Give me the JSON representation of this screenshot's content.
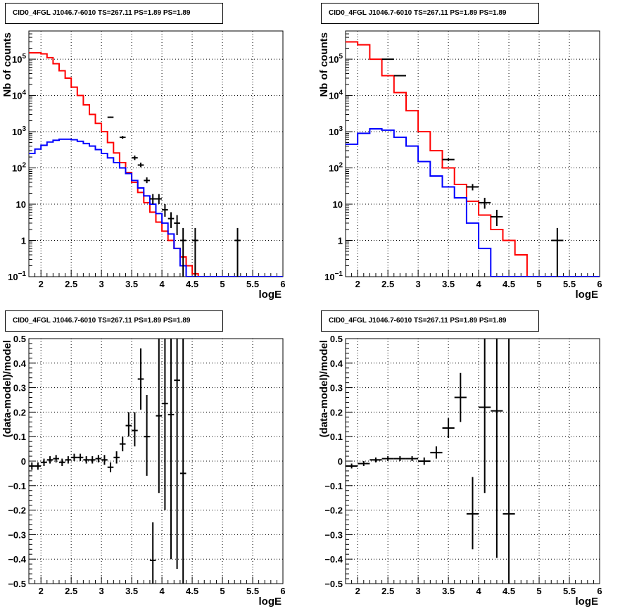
{
  "chart_data": [
    {
      "type": "line",
      "title": "CID0_4FGL J1046.7-6010 TS=267.11 PS=1.89 PS=1.89",
      "xlabel": "logE",
      "ylabel": "Nb of counts",
      "log_y": true,
      "xlim": [
        1.8,
        6.0
      ],
      "ylim": [
        0.1,
        600000
      ],
      "xticks": [
        "2",
        "2.5",
        "3",
        "3.5",
        "4",
        "4.5",
        "5",
        "5.5",
        "6"
      ],
      "yticks": [
        "10^-1",
        "1",
        "10",
        "10^2",
        "10^3",
        "10^4",
        "10^5"
      ],
      "grid": true,
      "bin_edges": [
        1.8,
        1.9,
        2.0,
        2.1,
        2.2,
        2.3,
        2.4,
        2.5,
        2.6,
        2.7,
        2.8,
        2.9,
        3.0,
        3.1,
        3.2,
        3.3,
        3.4,
        3.5,
        3.6,
        3.7,
        3.8,
        3.9,
        4.0,
        4.1,
        4.2,
        4.3,
        4.4,
        4.5,
        4.6,
        4.7,
        4.8,
        4.9,
        5.0,
        5.1,
        5.2,
        5.3,
        5.4,
        5.5,
        5.6,
        5.7,
        5.8,
        5.9,
        6.0
      ],
      "series": [
        {
          "color": "#ff0000",
          "step": true,
          "values": [
            150000,
            150000,
            140000,
            110000,
            75000,
            48000,
            30000,
            17000,
            10000,
            5500,
            3000,
            1700,
            1000,
            500,
            260,
            140,
            75,
            40,
            21,
            11,
            6,
            3.2,
            1.8,
            1.0,
            0.6,
            0.35,
            0.2,
            0.12,
            0.1,
            0.1,
            0.1,
            0.1,
            0.1,
            0.1,
            0.1,
            0.1,
            0.1,
            0.1,
            0.1,
            0.1,
            0.1,
            0.1
          ]
        },
        {
          "color": "#0000ff",
          "step": true,
          "values": [
            250,
            330,
            420,
            520,
            580,
            620,
            620,
            600,
            540,
            470,
            400,
            320,
            250,
            190,
            140,
            100,
            70,
            45,
            28,
            17,
            10,
            5.5,
            3.0,
            1.5,
            0.6,
            0.2,
            0.1,
            0.1,
            0.1,
            0.1,
            0.1,
            0.1,
            0.1,
            0.1,
            0.1,
            0.1,
            0.1,
            0.1,
            0.1,
            0.1,
            0.1,
            0.1
          ]
        }
      ],
      "points": [
        {
          "x": 3.15,
          "y": 2500,
          "dx": 0.05,
          "ylo": 2400,
          "yhi": 2600
        },
        {
          "x": 3.35,
          "y": 700,
          "dx": 0.05,
          "ylo": 640,
          "yhi": 760
        },
        {
          "x": 3.55,
          "y": 190,
          "dx": 0.05,
          "ylo": 165,
          "yhi": 220
        },
        {
          "x": 3.65,
          "y": 120,
          "dx": 0.05,
          "ylo": 105,
          "yhi": 140
        },
        {
          "x": 3.75,
          "y": 45,
          "dx": 0.05,
          "ylo": 38,
          "yhi": 55
        },
        {
          "x": 3.85,
          "y": 14,
          "dx": 0.05,
          "ylo": 10,
          "yhi": 19
        },
        {
          "x": 3.95,
          "y": 14,
          "dx": 0.05,
          "ylo": 10,
          "yhi": 19
        },
        {
          "x": 4.05,
          "y": 7,
          "dx": 0.05,
          "ylo": 4.5,
          "yhi": 10
        },
        {
          "x": 4.15,
          "y": 4,
          "dx": 0.05,
          "ylo": 2.2,
          "yhi": 6
        },
        {
          "x": 4.25,
          "y": 3,
          "dx": 0.05,
          "ylo": 1.4,
          "yhi": 5
        },
        {
          "x": 4.35,
          "y": 1,
          "dx": 0.05,
          "ylo": 0.1,
          "yhi": 2.2
        },
        {
          "x": 4.55,
          "y": 1,
          "dx": 0.05,
          "ylo": 0.1,
          "yhi": 2.2
        },
        {
          "x": 5.25,
          "y": 1,
          "dx": 0.05,
          "ylo": 0.1,
          "yhi": 2.2
        }
      ]
    },
    {
      "type": "line",
      "title": "CID0_4FGL J1046.7-6010 TS=267.11 PS=1.89 PS=1.89",
      "xlabel": "logE",
      "ylabel": "Nb of counts",
      "log_y": true,
      "xlim": [
        1.8,
        6.0
      ],
      "ylim": [
        0.1,
        600000
      ],
      "xticks": [
        "2",
        "2.5",
        "3",
        "3.5",
        "4",
        "4.5",
        "5",
        "5.5",
        "6"
      ],
      "yticks": [
        "10^-1",
        "1",
        "10",
        "10^2",
        "10^3",
        "10^4",
        "10^5"
      ],
      "grid": true,
      "bin_edges": [
        1.8,
        2.0,
        2.2,
        2.4,
        2.6,
        2.8,
        3.0,
        3.2,
        3.4,
        3.6,
        3.8,
        4.0,
        4.2,
        4.4,
        4.6,
        4.8,
        5.0,
        5.2,
        5.4,
        5.6,
        5.8,
        6.0
      ],
      "series": [
        {
          "color": "#ff0000",
          "step": true,
          "values": [
            300000,
            250000,
            100000,
            35000,
            12000,
            3800,
            1000,
            300,
            100,
            35,
            12,
            5,
            2,
            1,
            0.4,
            0.1,
            0.1,
            0.1,
            0.1,
            0.1,
            0.1
          ]
        },
        {
          "color": "#0000ff",
          "step": true,
          "values": [
            450,
            900,
            1200,
            1100,
            700,
            400,
            150,
            60,
            30,
            15,
            3,
            0.6,
            0.1,
            0.1,
            0.1,
            0.1,
            0.1,
            0.1,
            0.1,
            0.1,
            0.1
          ]
        }
      ],
      "points": [
        {
          "x": 2.5,
          "y": 100000,
          "dx": 0.1,
          "ylo": 99000,
          "yhi": 101000
        },
        {
          "x": 2.7,
          "y": 35000,
          "dx": 0.1,
          "ylo": 34500,
          "yhi": 35500
        },
        {
          "x": 3.5,
          "y": 170,
          "dx": 0.1,
          "ylo": 155,
          "yhi": 185
        },
        {
          "x": 3.9,
          "y": 30,
          "dx": 0.1,
          "ylo": 24,
          "yhi": 36
        },
        {
          "x": 4.1,
          "y": 11,
          "dx": 0.1,
          "ylo": 7.5,
          "yhi": 15
        },
        {
          "x": 4.3,
          "y": 4.5,
          "dx": 0.1,
          "ylo": 2.5,
          "yhi": 7
        },
        {
          "x": 5.3,
          "y": 1,
          "dx": 0.1,
          "ylo": 0.1,
          "yhi": 2.2
        }
      ]
    },
    {
      "type": "scatter",
      "title": "CID0_4FGL J1046.7-6010 TS=267.11 PS=1.89 PS=1.89",
      "xlabel": "logE",
      "ylabel": "(data-model)/model",
      "log_y": false,
      "xlim": [
        1.8,
        6.0
      ],
      "ylim": [
        -0.5,
        0.5
      ],
      "xticks": [
        "2",
        "2.5",
        "3",
        "3.5",
        "4",
        "4.5",
        "5",
        "5.5",
        "6"
      ],
      "yticks": [
        "-0.5",
        "-0.4",
        "-0.3",
        "-0.2",
        "-0.1",
        "0",
        "0.1",
        "0.2",
        "0.3",
        "0.4",
        "0.5"
      ],
      "grid": true,
      "points": [
        {
          "x": 1.85,
          "y": -0.02,
          "dx": 0.05,
          "ylo": -0.035,
          "yhi": -0.005
        },
        {
          "x": 1.95,
          "y": -0.02,
          "dx": 0.05,
          "ylo": -0.035,
          "yhi": -0.005
        },
        {
          "x": 2.05,
          "y": -0.005,
          "dx": 0.05,
          "ylo": -0.02,
          "yhi": 0.01
        },
        {
          "x": 2.15,
          "y": 0.005,
          "dx": 0.05,
          "ylo": -0.01,
          "yhi": 0.02
        },
        {
          "x": 2.25,
          "y": 0.01,
          "dx": 0.05,
          "ylo": -0.005,
          "yhi": 0.025
        },
        {
          "x": 2.35,
          "y": -0.005,
          "dx": 0.05,
          "ylo": -0.02,
          "yhi": 0.01
        },
        {
          "x": 2.45,
          "y": 0.005,
          "dx": 0.05,
          "ylo": -0.01,
          "yhi": 0.02
        },
        {
          "x": 2.55,
          "y": 0.015,
          "dx": 0.05,
          "ylo": 0.0,
          "yhi": 0.03
        },
        {
          "x": 2.65,
          "y": 0.015,
          "dx": 0.05,
          "ylo": 0.0,
          "yhi": 0.03
        },
        {
          "x": 2.75,
          "y": 0.005,
          "dx": 0.05,
          "ylo": -0.01,
          "yhi": 0.02
        },
        {
          "x": 2.85,
          "y": 0.005,
          "dx": 0.05,
          "ylo": -0.01,
          "yhi": 0.02
        },
        {
          "x": 2.95,
          "y": 0.01,
          "dx": 0.05,
          "ylo": -0.005,
          "yhi": 0.025
        },
        {
          "x": 3.05,
          "y": 0.005,
          "dx": 0.05,
          "ylo": -0.015,
          "yhi": 0.025
        },
        {
          "x": 3.15,
          "y": -0.025,
          "dx": 0.05,
          "ylo": -0.045,
          "yhi": -0.005
        },
        {
          "x": 3.25,
          "y": 0.015,
          "dx": 0.05,
          "ylo": -0.01,
          "yhi": 0.04
        },
        {
          "x": 3.35,
          "y": 0.07,
          "dx": 0.05,
          "ylo": 0.04,
          "yhi": 0.1
        },
        {
          "x": 3.45,
          "y": 0.145,
          "dx": 0.05,
          "ylo": 0.1,
          "yhi": 0.2
        },
        {
          "x": 3.55,
          "y": 0.125,
          "dx": 0.05,
          "ylo": 0.06,
          "yhi": 0.2
        },
        {
          "x": 3.65,
          "y": 0.335,
          "dx": 0.05,
          "ylo": 0.21,
          "yhi": 0.46
        },
        {
          "x": 3.75,
          "y": 0.1,
          "dx": 0.05,
          "ylo": -0.06,
          "yhi": 0.27
        },
        {
          "x": 3.85,
          "y": -0.405,
          "dx": 0.05,
          "ylo": -0.5,
          "yhi": -0.25
        },
        {
          "x": 3.95,
          "y": 0.185,
          "dx": 0.05,
          "ylo": -0.13,
          "yhi": 0.5
        },
        {
          "x": 4.05,
          "y": 0.235,
          "dx": 0.05,
          "ylo": -0.2,
          "yhi": 0.5
        },
        {
          "x": 4.15,
          "y": 0.19,
          "dx": 0.05,
          "ylo": -0.4,
          "yhi": 0.5
        },
        {
          "x": 4.25,
          "y": 0.33,
          "dx": 0.05,
          "ylo": -0.44,
          "yhi": 0.5
        },
        {
          "x": 4.35,
          "y": -0.05,
          "dx": 0.05,
          "ylo": -0.5,
          "yhi": 0.5
        }
      ]
    },
    {
      "type": "scatter",
      "title": "CID0_4FGL J1046.7-6010 TS=267.11 PS=1.89 PS=1.89",
      "xlabel": "logE",
      "ylabel": "(data-model)/model",
      "log_y": false,
      "xlim": [
        1.8,
        6.0
      ],
      "ylim": [
        -0.5,
        0.5
      ],
      "xticks": [
        "2",
        "2.5",
        "3",
        "3.5",
        "4",
        "4.5",
        "5",
        "5.5",
        "6"
      ],
      "yticks": [
        "-0.5",
        "-0.4",
        "-0.3",
        "-0.2",
        "-0.1",
        "0",
        "0.1",
        "0.2",
        "0.3",
        "0.4",
        "0.5"
      ],
      "grid": true,
      "points": [
        {
          "x": 1.9,
          "y": -0.02,
          "dx": 0.1,
          "ylo": -0.03,
          "yhi": -0.01
        },
        {
          "x": 2.1,
          "y": -0.01,
          "dx": 0.1,
          "ylo": -0.02,
          "yhi": 0.0
        },
        {
          "x": 2.3,
          "y": 0.005,
          "dx": 0.1,
          "ylo": -0.005,
          "yhi": 0.015
        },
        {
          "x": 2.5,
          "y": 0.01,
          "dx": 0.1,
          "ylo": 0.0,
          "yhi": 0.02
        },
        {
          "x": 2.7,
          "y": 0.01,
          "dx": 0.1,
          "ylo": 0.0,
          "yhi": 0.02
        },
        {
          "x": 2.9,
          "y": 0.01,
          "dx": 0.1,
          "ylo": 0.0,
          "yhi": 0.02
        },
        {
          "x": 3.1,
          "y": 0.0,
          "dx": 0.1,
          "ylo": -0.015,
          "yhi": 0.015
        },
        {
          "x": 3.3,
          "y": 0.035,
          "dx": 0.1,
          "ylo": 0.01,
          "yhi": 0.06
        },
        {
          "x": 3.5,
          "y": 0.135,
          "dx": 0.1,
          "ylo": 0.095,
          "yhi": 0.175
        },
        {
          "x": 3.7,
          "y": 0.26,
          "dx": 0.1,
          "ylo": 0.16,
          "yhi": 0.36
        },
        {
          "x": 3.9,
          "y": -0.215,
          "dx": 0.1,
          "ylo": -0.36,
          "yhi": -0.065
        },
        {
          "x": 4.1,
          "y": 0.22,
          "dx": 0.1,
          "ylo": -0.13,
          "yhi": 0.5
        },
        {
          "x": 4.3,
          "y": 0.205,
          "dx": 0.1,
          "ylo": -0.395,
          "yhi": 0.5
        },
        {
          "x": 4.5,
          "y": -0.215,
          "dx": 0.1,
          "ylo": -0.5,
          "yhi": 0.5
        }
      ]
    }
  ]
}
